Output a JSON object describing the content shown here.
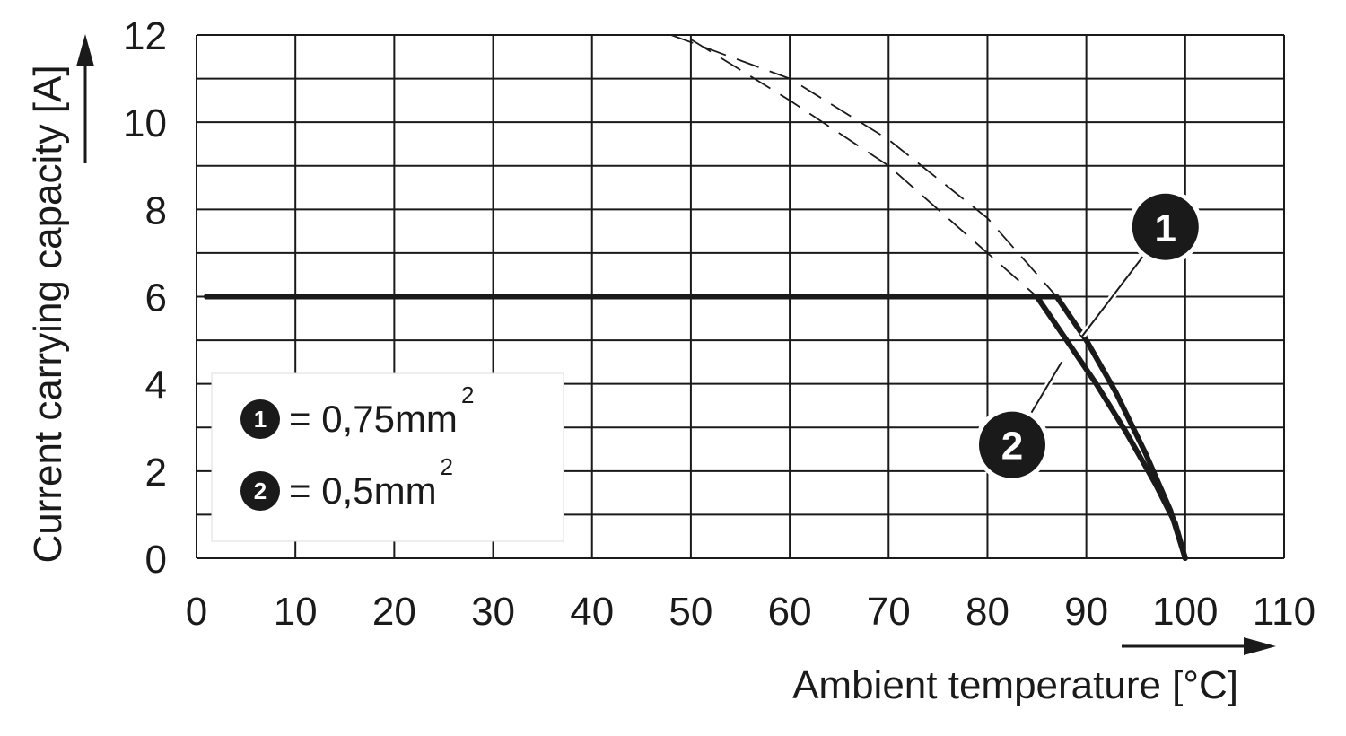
{
  "chart_data": {
    "type": "line",
    "xlabel": "Ambient temperature [°C]",
    "ylabel": "Current carrying capacity [A]",
    "xlim": [
      0,
      110
    ],
    "ylim": [
      0,
      12
    ],
    "x_ticks": [
      "0",
      "10",
      "20",
      "30",
      "40",
      "50",
      "60",
      "70",
      "80",
      "90",
      "100",
      "110"
    ],
    "y_ticks": [
      "0",
      "2",
      "4",
      "6",
      "8",
      "10",
      "12"
    ],
    "grid": true,
    "series": [
      {
        "marker": "1",
        "x": [
          1,
          87,
          90,
          93,
          96,
          98.5,
          100
        ],
        "y": [
          6,
          6,
          5.0,
          3.8,
          2.4,
          1.1,
          0
        ],
        "dashed_x": [
          48,
          60,
          70,
          80,
          87
        ],
        "dashed_y": [
          12,
          11.0,
          9.6,
          7.8,
          6
        ]
      },
      {
        "marker": "2",
        "x": [
          1,
          85,
          88,
          91,
          94,
          97,
          99,
          100
        ],
        "y": [
          6,
          6,
          5.0,
          4.0,
          2.9,
          1.7,
          0.8,
          0
        ],
        "dashed_x": [
          50,
          60,
          70,
          80,
          85
        ],
        "dashed_y": [
          11.9,
          10.5,
          9.0,
          7.0,
          6
        ]
      }
    ],
    "legend": [
      {
        "marker": "1",
        "text": "= 0,75mm",
        "sup": "2"
      },
      {
        "marker": "2",
        "text": "= 0,5mm",
        "sup": "2"
      }
    ],
    "legend_position": "bottom-left",
    "callouts": [
      {
        "marker": "1",
        "x": 98,
        "y": 7.6,
        "target_x": 89.6,
        "target_y": 5.1
      },
      {
        "marker": "2",
        "x": 82.5,
        "y": 2.6,
        "target_x": 87.5,
        "target_y": 4.5
      }
    ]
  }
}
